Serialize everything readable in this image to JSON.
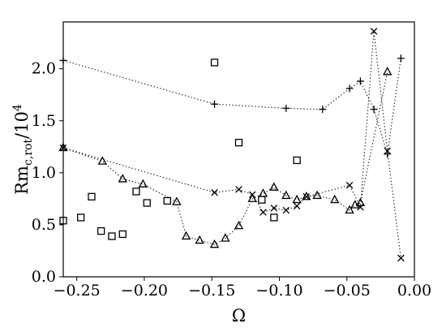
{
  "chart_data": {
    "type": "scatter",
    "xlabel": "Ω",
    "ylabel": "Rm",
    "ylabel_sub": "c,rot",
    "ylabel_div": "/10",
    "ylabel_exp": "4",
    "xlim": [
      -0.26,
      0.0
    ],
    "ylim": [
      0.0,
      2.45
    ],
    "xticks": [
      -0.25,
      -0.2,
      -0.15,
      -0.1,
      -0.05,
      0.0
    ],
    "xtick_labels": [
      "−0.25",
      "−0.20",
      "−0.15",
      "−0.10",
      "−0.05",
      "0.00"
    ],
    "yticks": [
      0.0,
      0.5,
      1.0,
      1.5,
      2.0
    ],
    "ytick_labels": [
      "0.0",
      "0.5",
      "1.0",
      "1.5",
      "2.0"
    ],
    "series": [
      {
        "marker": "plus",
        "connected": true,
        "x": [
          -0.26,
          -0.148,
          -0.095,
          -0.068,
          -0.048,
          -0.04,
          -0.03,
          -0.02,
          -0.01
        ],
        "y": [
          2.08,
          1.66,
          1.62,
          1.61,
          1.81,
          1.88,
          1.61,
          1.18,
          2.1
        ]
      },
      {
        "marker": "cross",
        "connected": true,
        "x": [
          -0.26,
          -0.148,
          -0.13,
          -0.12,
          -0.112,
          -0.104,
          -0.095,
          -0.087,
          -0.08,
          -0.048,
          -0.04,
          -0.03,
          -0.02,
          -0.01
        ],
        "y": [
          1.24,
          0.81,
          0.84,
          0.79,
          0.62,
          0.66,
          0.64,
          0.68,
          0.77,
          0.88,
          0.67,
          2.36,
          1.21,
          0.18
        ]
      },
      {
        "marker": "triangle",
        "connected": true,
        "x": [
          -0.26,
          -0.231,
          -0.216,
          -0.201,
          -0.176,
          -0.169,
          -0.159,
          -0.148,
          -0.14,
          -0.13,
          -0.12,
          -0.112,
          -0.104,
          -0.095,
          -0.087,
          -0.08,
          -0.072,
          -0.059,
          -0.048,
          -0.044,
          -0.04,
          -0.02
        ],
        "y": [
          1.24,
          1.11,
          0.94,
          0.89,
          0.72,
          0.39,
          0.35,
          0.31,
          0.37,
          0.49,
          0.75,
          0.8,
          0.86,
          0.78,
          0.74,
          0.77,
          0.78,
          0.74,
          0.64,
          0.69,
          0.71,
          1.97
        ]
      },
      {
        "marker": "square",
        "connected": false,
        "x": [
          -0.26,
          -0.247,
          -0.239,
          -0.232,
          -0.224,
          -0.216,
          -0.206,
          -0.198,
          -0.183,
          -0.148,
          -0.13,
          -0.113,
          -0.104,
          -0.087
        ],
        "y": [
          0.54,
          0.57,
          0.77,
          0.44,
          0.39,
          0.41,
          0.82,
          0.71,
          0.73,
          2.06,
          1.29,
          0.74,
          0.57,
          1.12
        ]
      }
    ]
  }
}
